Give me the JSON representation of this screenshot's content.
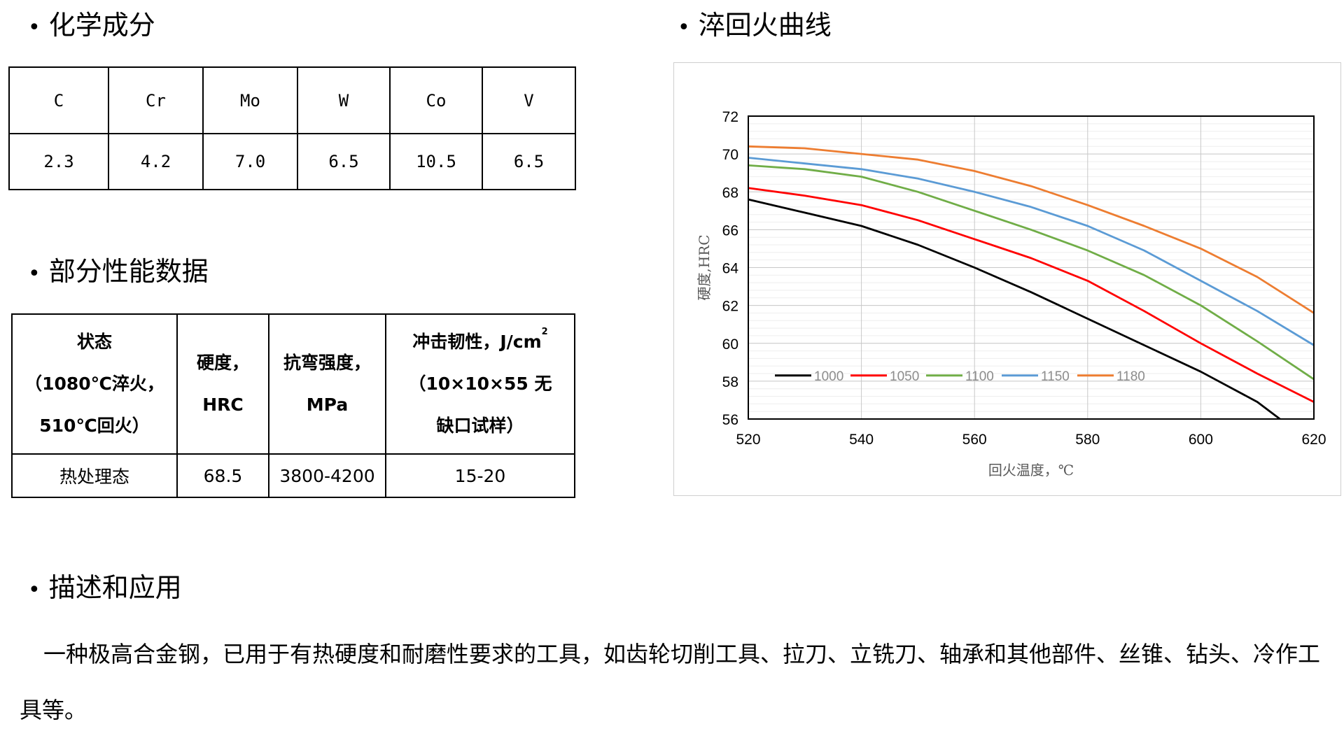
{
  "headings": {
    "bullet": "•",
    "chemistry": "化学成分",
    "properties": "部分性能数据",
    "curve": "淬回火曲线",
    "description": "描述和应用"
  },
  "chemistry": {
    "elements": [
      "C",
      "Cr",
      "Mo",
      "W",
      "Co",
      "V"
    ],
    "values": [
      "2.3",
      "4.2",
      "7.0",
      "6.5",
      "10.5",
      "6.5"
    ]
  },
  "properties": {
    "headers": {
      "state": [
        "状态",
        "（1080℃淬火，",
        "510℃回火）"
      ],
      "hardness": [
        "硬度，",
        "HRC"
      ],
      "bending": [
        "抗弯强度，",
        "MPa"
      ],
      "impact": [
        "冲击韧性，J/cm",
        "（10×10×55 无",
        "缺口试样）"
      ],
      "impact_sup": "2"
    },
    "row": [
      "热处理态",
      "68.5",
      "3800-4200",
      "15-20"
    ]
  },
  "description": "一种极高合金钢，已用于有热硬度和耐磨性要求的工具，如齿轮切削工具、拉刀、立铣刀、轴承和其他部件、丝锥、钻头、冷作工具等。",
  "chart_data": {
    "type": "line",
    "xlabel": "回火温度，℃",
    "ylabel": "硬度,HRC",
    "xlim": [
      520,
      620
    ],
    "ylim": [
      56,
      72
    ],
    "xticks": [
      520,
      540,
      560,
      580,
      600,
      620
    ],
    "yticks": [
      56,
      58,
      60,
      62,
      64,
      66,
      68,
      70,
      72
    ],
    "grid": "major and minor horizontal, major vertical",
    "legend_position": "inside-bottom-left",
    "x": [
      520,
      530,
      540,
      550,
      560,
      570,
      580,
      590,
      600,
      610,
      620
    ],
    "series": [
      {
        "name": "1000",
        "color": "#000000",
        "x": [
          520,
          530,
          540,
          550,
          560,
          570,
          580,
          590,
          600,
          610,
          614
        ],
        "values": [
          67.6,
          66.9,
          66.2,
          65.2,
          64.0,
          62.7,
          61.3,
          59.9,
          58.5,
          56.9,
          56.0
        ]
      },
      {
        "name": "1050",
        "color": "#ff0000",
        "values": [
          68.2,
          67.8,
          67.3,
          66.5,
          65.5,
          64.5,
          63.3,
          61.7,
          60.0,
          58.4,
          56.9
        ]
      },
      {
        "name": "1100",
        "color": "#70ad47",
        "values": [
          69.4,
          69.2,
          68.8,
          68.0,
          67.0,
          66.0,
          64.9,
          63.6,
          62.0,
          60.1,
          58.1
        ]
      },
      {
        "name": "1150",
        "color": "#5b9bd5",
        "values": [
          69.8,
          69.5,
          69.2,
          68.7,
          68.0,
          67.2,
          66.2,
          64.9,
          63.3,
          61.7,
          59.9
        ]
      },
      {
        "name": "1180",
        "color": "#ed7d31",
        "values": [
          70.4,
          70.3,
          70.0,
          69.7,
          69.1,
          68.3,
          67.3,
          66.2,
          65.0,
          63.5,
          61.6
        ]
      }
    ]
  }
}
